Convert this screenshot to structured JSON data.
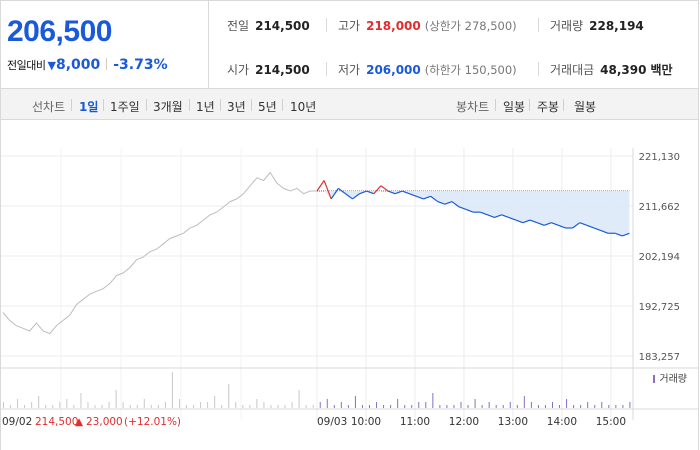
{
  "price": {
    "current": "206,500",
    "change_label": "전일대비",
    "change_icon": "down-triangle-icon",
    "change_value": "8,000",
    "change_pct": "-3.73%"
  },
  "stats": {
    "prev_close": {
      "label": "전일",
      "value": "214,500"
    },
    "high": {
      "label": "고가",
      "value": "218,000",
      "sub": "(상한가 278,500)"
    },
    "volume": {
      "label": "거래량",
      "value": "228,194"
    },
    "open": {
      "label": "시가",
      "value": "214,500"
    },
    "low": {
      "label": "저가",
      "value": "206,000",
      "sub": "(하한가 150,500)"
    },
    "turnover": {
      "label": "거래대금",
      "value": "48,390",
      "unit": "백만"
    }
  },
  "toolbar": {
    "line_chart_label": "선차트",
    "periods": [
      "1일",
      "1주일",
      "3개월",
      "1년",
      "3년",
      "5년",
      "10년"
    ],
    "selected_period": "1일",
    "candle_chart_label": "봉차트",
    "candle_periods": [
      "일봉",
      "주봉",
      "월봉"
    ]
  },
  "colors": {
    "up": "#e12d2d",
    "down": "#1a5ad8",
    "prev_day_line": "#bdbdbd",
    "fill": "#dde9fa"
  },
  "chart_data": {
    "type": "line",
    "y_axis_ticks": [
      "221,130",
      "211,662",
      "202,194",
      "192,725",
      "183,257"
    ],
    "ylim": [
      183257,
      221130
    ],
    "reference_price": 214500,
    "prev_day": {
      "date_label": "09/02",
      "close": "214,500",
      "change": "23,000",
      "change_pct": "(+12.01%)",
      "values": [
        191500,
        190000,
        189000,
        188500,
        188000,
        189500,
        188000,
        187500,
        189000,
        190000,
        191000,
        193000,
        194000,
        195000,
        195500,
        196000,
        197000,
        198500,
        199000,
        200000,
        201500,
        202000,
        203000,
        203500,
        204500,
        205500,
        206000,
        206500,
        207500,
        208000,
        209000,
        210000,
        210500,
        211500,
        212500,
        213000,
        214000,
        215500,
        217000,
        216500,
        218000,
        216000,
        215000,
        214500,
        215000,
        214000,
        214500,
        214500
      ]
    },
    "today": {
      "date_label": "09/03",
      "x_labels": [
        "10:00",
        "11:00",
        "12:00",
        "13:00",
        "14:00",
        "15:00"
      ],
      "values": [
        214500,
        216500,
        213000,
        215000,
        214000,
        213000,
        214000,
        214500,
        214000,
        215500,
        214500,
        214000,
        214500,
        214000,
        213500,
        213000,
        213500,
        212500,
        212000,
        212500,
        211500,
        211000,
        210500,
        210500,
        210000,
        209500,
        210000,
        209500,
        209000,
        208500,
        209000,
        208500,
        208000,
        208500,
        208000,
        207500,
        207500,
        208500,
        208000,
        207500,
        207000,
        206500,
        206500,
        206000,
        206500
      ]
    },
    "volume_label": "거래량",
    "volume_values": [
      2,
      1,
      3,
      1,
      2,
      4,
      1,
      1,
      2,
      3,
      1,
      5,
      2,
      1,
      1,
      2,
      6,
      2,
      1,
      1,
      3,
      1,
      1,
      2,
      12,
      3,
      1,
      1,
      2,
      2,
      4,
      1,
      8,
      2,
      1,
      1,
      3,
      2,
      1,
      1,
      1,
      2,
      6,
      1,
      1,
      2,
      3,
      1,
      2,
      1,
      4,
      1,
      1,
      2,
      1,
      1,
      3,
      1,
      1,
      2,
      2,
      5,
      1,
      1,
      1,
      2,
      1,
      3,
      1,
      2,
      1,
      1,
      2,
      1,
      4,
      2,
      1,
      1,
      2,
      1,
      3,
      1,
      1,
      2,
      1,
      2,
      1,
      1,
      1,
      2
    ]
  }
}
